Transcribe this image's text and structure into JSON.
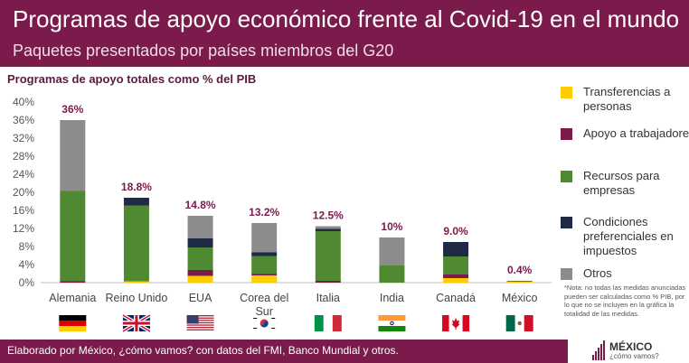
{
  "header": {
    "title": "Programas de apoyo económico frente al Covid-19 en el mundo",
    "subtitle": "Paquetes presentados por países miembros del G20"
  },
  "chart_title": "Programas de apoyo totales como % del PIB",
  "legend": [
    {
      "label": "Transferencias a personas",
      "color": "#ffcc00"
    },
    {
      "label": "Apoyo a trabajadores",
      "color": "#7a1b4b"
    },
    {
      "label": "Recursos para empresas",
      "color": "#4f8a32"
    },
    {
      "label": "Condiciones preferenciales en impuestos",
      "color": "#1f2a44"
    },
    {
      "label": "Otros",
      "color": "#8c8c8c"
    }
  ],
  "note": "*Nota: no todas las medidas anunciadas pueden ser calculadas como % PIB, por lo que no se incluyen en la gráfica la totalidad de las medidas.",
  "footer": {
    "text": "Elaborado por México, ¿cómo vamos? con datos del FMI, Banco Mundial y otros."
  },
  "logo": {
    "name": "MÉXICO",
    "tagline": "¿cómo vamos?"
  },
  "chart_data": {
    "type": "bar",
    "stacked": true,
    "categories": [
      "Alemania",
      "Reino Unido",
      "EUA",
      "Corea del Sur",
      "Italia",
      "India",
      "Canadá",
      "México"
    ],
    "totals_labels": [
      "36%",
      "18.8%",
      "14.8%",
      "13.2%",
      "12.5%",
      "10%",
      "9.0%",
      "0.4%"
    ],
    "series": [
      {
        "name": "Transferencias a personas",
        "color": "#ffcc00",
        "values": [
          0,
          0.3,
          1.5,
          1.6,
          0,
          0,
          1.0,
          0.2
        ]
      },
      {
        "name": "Apoyo a trabajadores",
        "color": "#7a1b4b",
        "values": [
          0.3,
          0,
          1.3,
          0.3,
          0.4,
          0,
          0.8,
          0
        ]
      },
      {
        "name": "Recursos para empresas",
        "color": "#4f8a32",
        "values": [
          20.0,
          16.8,
          5.0,
          4.0,
          11.0,
          3.8,
          4.0,
          0.2
        ]
      },
      {
        "name": "Condiciones preferenciales en impuestos",
        "color": "#1f2a44",
        "values": [
          0,
          1.7,
          2.0,
          0.8,
          0.5,
          0,
          3.2,
          0
        ]
      },
      {
        "name": "Otros",
        "color": "#8c8c8c",
        "values": [
          15.7,
          0,
          5.0,
          6.5,
          0.6,
          6.2,
          0,
          0
        ]
      }
    ],
    "ylim": [
      0,
      40
    ],
    "yticks": [
      "0%",
      "4%",
      "8%",
      "12%",
      "16%",
      "20%",
      "24%",
      "28%",
      "32%",
      "36%",
      "40%"
    ],
    "grid": false,
    "legend_position": "right"
  }
}
